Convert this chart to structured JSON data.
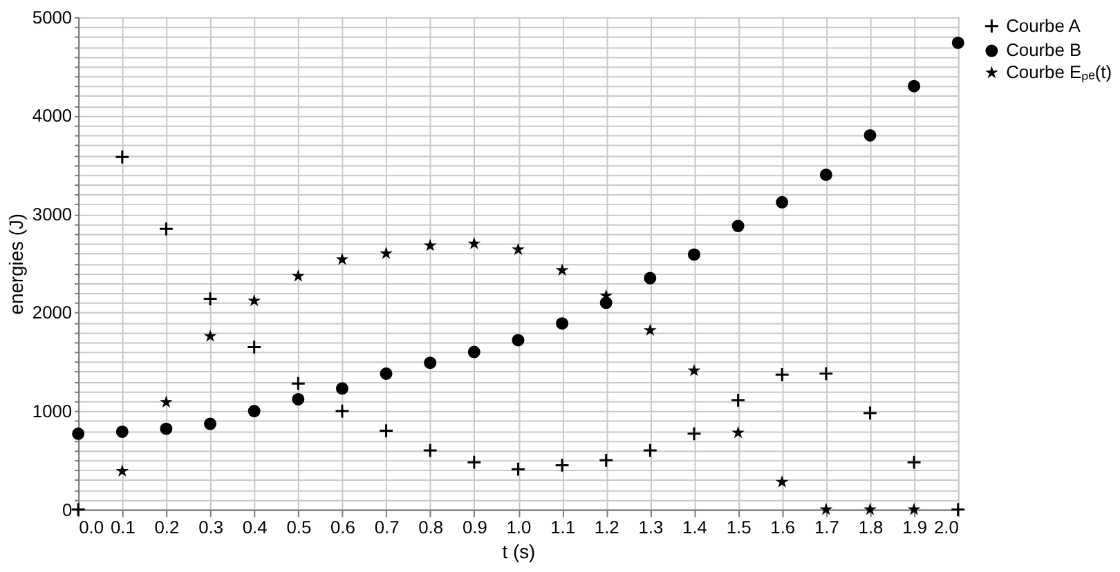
{
  "chart_data": {
    "type": "scatter",
    "xlabel": "t (s)",
    "ylabel": "energies (J)",
    "x": [
      0.0,
      0.1,
      0.2,
      0.3,
      0.4,
      0.5,
      0.6,
      0.7,
      0.8,
      0.9,
      1.0,
      1.1,
      1.2,
      1.3,
      1.4,
      1.5,
      1.6,
      1.7,
      1.8,
      1.9,
      2.0
    ],
    "series": [
      {
        "name": "Courbe A",
        "color": "#000000",
        "marker": "cross",
        "values": [
          0,
          3580,
          2850,
          2140,
          1650,
          1280,
          1000,
          800,
          600,
          480,
          410,
          450,
          500,
          600,
          770,
          1110,
          1370,
          1380,
          980,
          480,
          0
        ]
      },
      {
        "name": "Courbe B",
        "color": "#000000",
        "marker": "circle",
        "values": [
          770,
          790,
          820,
          870,
          1000,
          1120,
          1230,
          1380,
          1490,
          1600,
          1720,
          1890,
          2100,
          2350,
          2590,
          2880,
          3120,
          3400,
          3800,
          4300,
          4740
        ]
      },
      {
        "name": "Courbe Eₚₑ(t)",
        "color": "#000000",
        "marker": "star",
        "values": [
          null,
          390,
          1090,
          1760,
          2120,
          2370,
          2540,
          2600,
          2680,
          2700,
          2640,
          2430,
          2170,
          1820,
          1410,
          780,
          280,
          0,
          0,
          0,
          null
        ]
      }
    ],
    "xlim": [
      0.0,
      2.0
    ],
    "xticks": [
      {
        "value": 0.0,
        "label": "0.0"
      },
      0.1,
      0.2,
      0.3,
      0.4,
      0.5,
      0.6,
      0.7,
      0.8,
      0.9,
      {
        "value": 1.0,
        "label": "1.0"
      },
      1.1,
      1.2,
      1.3,
      1.4,
      1.5,
      1.6,
      1.7,
      1.8,
      1.9,
      {
        "value": 2.0,
        "label": "2.0"
      }
    ],
    "ylim": [
      0,
      5000
    ],
    "yticks": [
      0,
      {
        "value": 100,
        "label": null
      },
      {
        "value": 200,
        "label": null
      },
      {
        "value": 300,
        "label": null
      },
      {
        "value": 400,
        "label": null
      },
      {
        "value": 500,
        "label": null
      },
      {
        "value": 600,
        "label": null
      },
      {
        "value": 700,
        "label": null
      },
      {
        "value": 800,
        "label": null
      },
      {
        "value": 900,
        "label": null
      },
      1000,
      {
        "value": 1100,
        "label": null
      },
      {
        "value": 1200,
        "label": null
      },
      {
        "value": 1300,
        "label": null
      },
      {
        "value": 1400,
        "label": null
      },
      {
        "value": 1500,
        "label": null
      },
      {
        "value": 1600,
        "label": null
      },
      {
        "value": 1700,
        "label": null
      },
      {
        "value": 1800,
        "label": null
      },
      {
        "value": 1900,
        "label": null
      },
      2000,
      {
        "value": 2100,
        "label": null
      },
      {
        "value": 2200,
        "label": null
      },
      {
        "value": 2300,
        "label": null
      },
      {
        "value": 2400,
        "label": null
      },
      {
        "value": 2500,
        "label": null
      },
      {
        "value": 2600,
        "label": null
      },
      {
        "value": 2700,
        "label": null
      },
      {
        "value": 2800,
        "label": null
      },
      {
        "value": 2900,
        "label": null
      },
      3000,
      {
        "value": 3100,
        "label": null
      },
      {
        "value": 3200,
        "label": null
      },
      {
        "value": 3300,
        "label": null
      },
      {
        "value": 3400,
        "label": null
      },
      {
        "value": 3500,
        "label": null
      },
      {
        "value": 3600,
        "label": null
      },
      {
        "value": 3700,
        "label": null
      },
      {
        "value": 3800,
        "label": null
      },
      {
        "value": 3900,
        "label": null
      },
      4000,
      {
        "value": 4100,
        "label": null
      },
      {
        "value": 4200,
        "label": null
      },
      {
        "value": 4300,
        "label": null
      },
      {
        "value": 4400,
        "label": null
      },
      {
        "value": 4500,
        "label": null
      },
      {
        "value": 4600,
        "label": null
      },
      {
        "value": 4700,
        "label": null
      },
      {
        "value": 4800,
        "label": null
      },
      {
        "value": 4900,
        "label": null
      },
      5000
    ],
    "grid": true,
    "legend": "right"
  }
}
